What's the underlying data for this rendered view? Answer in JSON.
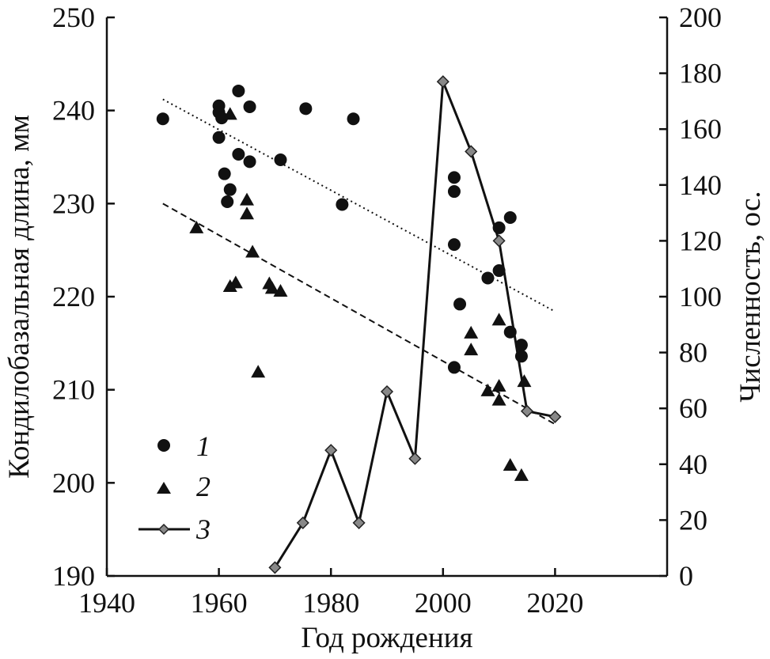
{
  "chart_data": {
    "type": "scatter",
    "title": "",
    "xlabel": "Год рождения",
    "ylabel": "Кондилобазальная длина, мм",
    "y2label": "Численность, ос.",
    "xlim": [
      1940,
      2040
    ],
    "ylim": [
      190,
      250
    ],
    "y2lim": [
      0,
      200
    ],
    "xticks": [
      1940,
      1960,
      1980,
      2000,
      2020
    ],
    "yticks": [
      190,
      200,
      210,
      220,
      230,
      240,
      250
    ],
    "y2ticks": [
      0,
      20,
      40,
      60,
      80,
      100,
      120,
      140,
      160,
      180,
      200
    ],
    "grid": false,
    "legend_position": "bottom-left",
    "series": [
      {
        "name": "1",
        "marker": "circle",
        "axis": "left",
        "points": [
          [
            1950,
            239.1
          ],
          [
            1960,
            240.5
          ],
          [
            1960,
            239.8
          ],
          [
            1960.5,
            239.2
          ],
          [
            1960,
            237.1
          ],
          [
            1961,
            233.2
          ],
          [
            1962,
            231.5
          ],
          [
            1961.5,
            230.2
          ],
          [
            1963.5,
            242.1
          ],
          [
            1963.5,
            235.3
          ],
          [
            1965.5,
            240.4
          ],
          [
            1965.5,
            234.5
          ],
          [
            1971,
            234.7
          ],
          [
            1975.5,
            240.2
          ],
          [
            1982,
            229.9
          ],
          [
            1984,
            239.1
          ],
          [
            2002,
            232.8
          ],
          [
            2002,
            231.3
          ],
          [
            2002,
            225.6
          ],
          [
            2002,
            212.4
          ],
          [
            2003,
            219.2
          ],
          [
            2008,
            222.0
          ],
          [
            2010,
            227.4
          ],
          [
            2010,
            222.8
          ],
          [
            2012,
            228.5
          ],
          [
            2012,
            216.2
          ],
          [
            2014,
            214.8
          ],
          [
            2014,
            213.6
          ]
        ]
      },
      {
        "name": "2",
        "marker": "triangle",
        "axis": "left",
        "points": [
          [
            1956,
            227.4
          ],
          [
            1962,
            239.6
          ],
          [
            1962,
            221.1
          ],
          [
            1963,
            221.5
          ],
          [
            1965,
            230.4
          ],
          [
            1965,
            228.9
          ],
          [
            1966,
            224.8
          ],
          [
            1967,
            211.9
          ],
          [
            1969,
            221.4
          ],
          [
            1969.5,
            220.9
          ],
          [
            1971,
            220.6
          ],
          [
            2005,
            216.1
          ],
          [
            2005,
            214.3
          ],
          [
            2008,
            209.9
          ],
          [
            2010,
            217.5
          ],
          [
            2010,
            210.4
          ],
          [
            2010,
            208.9
          ],
          [
            2012,
            201.9
          ],
          [
            2014,
            200.8
          ],
          [
            2014.5,
            210.9
          ]
        ]
      },
      {
        "name": "3",
        "marker": "diamond-line",
        "axis": "right",
        "points": [
          [
            1970,
            3
          ],
          [
            1975,
            19
          ],
          [
            1980,
            45
          ],
          [
            1985,
            19
          ],
          [
            1990,
            66
          ],
          [
            1995,
            42
          ],
          [
            2000,
            177
          ],
          [
            2005,
            152
          ],
          [
            2010,
            120
          ],
          [
            2015,
            59
          ],
          [
            2020,
            57
          ]
        ]
      }
    ],
    "trendlines": [
      {
        "series": "1",
        "style": "dotted",
        "points": [
          [
            1950,
            241.2
          ],
          [
            2020,
            218.4
          ]
        ]
      },
      {
        "series": "2",
        "style": "dashed",
        "points": [
          [
            1950,
            230.0
          ],
          [
            2020,
            206.3
          ]
        ]
      }
    ]
  },
  "legend": [
    {
      "label": "1",
      "marker": "circle"
    },
    {
      "label": "2",
      "marker": "triangle"
    },
    {
      "label": "3",
      "marker": "diamond-line"
    }
  ]
}
